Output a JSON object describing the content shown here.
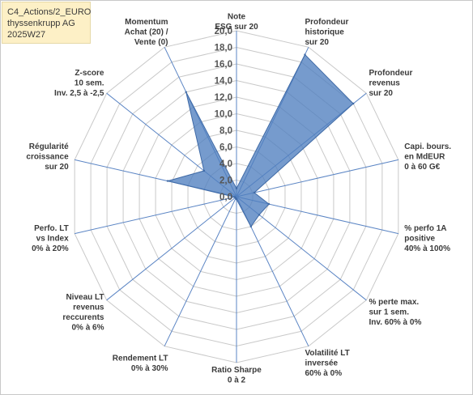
{
  "header": {
    "lines": [
      "C4_Actions/2_EURO",
      "thyssenkrupp AG",
      "2025W27"
    ]
  },
  "chart_data": {
    "type": "radar",
    "title": "",
    "rmin": 0,
    "rmax": 20,
    "tick_step": 2,
    "tick_labels": [
      "0,0",
      "2,0",
      "4,0",
      "6,0",
      "8,0",
      "10,0",
      "12,0",
      "14,0",
      "16,0",
      "18,0",
      "20,0"
    ],
    "grid": true,
    "legend": "none",
    "categories": [
      "Note ESG sur 20",
      "Profondeur historique sur 20",
      "Profondeur revenus sur 20",
      "Capi. bours. en MdEUR 0 à 60 G€",
      "% perfo 1A positive 40% à 100%",
      "% perte max. sur 1 sem. Inv. 60% à 0%",
      "Volatilité LT inversée 60% à 0%",
      "Ratio Sharpe 0 à 2",
      "Rendement LT 0% à 30%",
      "Niveau LT revenus reccurents 0% à 6%",
      "Perfo. LT vs Index 0% à 20%",
      "Régularité croissance sur 20",
      "Z-score 10 sem. Inv. 2,5 à -2,5",
      "Momentum Achat (20) / Vente (0)"
    ],
    "category_lines": [
      [
        "Note",
        "ESG sur 20"
      ],
      [
        "Profondeur",
        "historique",
        "sur 20"
      ],
      [
        "Profondeur",
        "revenus",
        "sur 20"
      ],
      [
        "Capi. bours.",
        "en MdEUR",
        "0 à 60 G€"
      ],
      [
        "% perfo 1A",
        "positive",
        "40% à 100%"
      ],
      [
        "% perte max.",
        "sur 1 sem.",
        "Inv. 60% à 0%"
      ],
      [
        "Volatilité LT",
        "inversée",
        "60% à 0%"
      ],
      [
        "Ratio Sharpe",
        "0 à 2"
      ],
      [
        "Rendement LT",
        "0% à 30%"
      ],
      [
        "Niveau LT",
        "revenus",
        "reccurents",
        "0% à 6%"
      ],
      [
        "Perfo. LT",
        "vs Index",
        "0% à 20%"
      ],
      [
        "Régularité",
        "croissance",
        "sur 20"
      ],
      [
        "Z-score",
        "10 sem.",
        "Inv. 2,5 à -2,5"
      ],
      [
        "Momentum",
        "Achat (20) /",
        "Vente (0)"
      ]
    ],
    "series": [
      {
        "values": [
          1.0,
          19.0,
          18.0,
          2.2,
          4.0,
          3.5,
          4.0,
          0.3,
          0.2,
          0.2,
          0.2,
          8.5,
          5.0,
          14.0
        ],
        "color": "#4f7fbf"
      }
    ]
  }
}
